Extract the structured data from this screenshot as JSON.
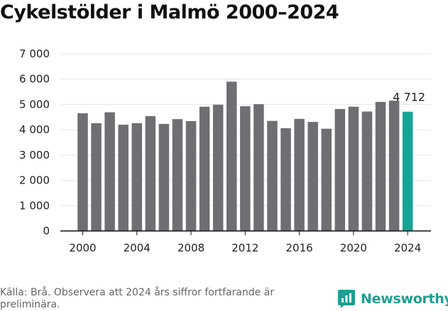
{
  "title": "Cykelstölder i Malmö 2000–2024",
  "source": "Källa: Brå. Observera att 2024 års siffror fortfarande är preliminära.",
  "brand": {
    "name": "Newsworthy",
    "color": "#1f9e91"
  },
  "colors": {
    "bar": "#6f6e73",
    "highlight": "#14a597",
    "grid": "#e6e6e6",
    "axis": "#111111"
  },
  "chart_data": {
    "type": "bar",
    "title": "Cykelstölder i Malmö 2000–2024",
    "xlabel": "",
    "ylabel": "",
    "categories": [
      "2000",
      "2001",
      "2002",
      "2003",
      "2004",
      "2005",
      "2006",
      "2007",
      "2008",
      "2009",
      "2010",
      "2011",
      "2012",
      "2013",
      "2014",
      "2015",
      "2016",
      "2017",
      "2018",
      "2019",
      "2020",
      "2021",
      "2022",
      "2023",
      "2024"
    ],
    "values": [
      4650,
      4260,
      4690,
      4200,
      4260,
      4540,
      4230,
      4420,
      4340,
      4910,
      4990,
      5900,
      4930,
      5010,
      4350,
      4060,
      4430,
      4310,
      4040,
      4820,
      4910,
      4720,
      5100,
      5150,
      4712
    ],
    "highlight": "2024",
    "annotation": {
      "category": "2024",
      "label": "4 712"
    },
    "ylim": [
      0,
      7000
    ],
    "yticks": [
      0,
      1000,
      2000,
      3000,
      4000,
      5000,
      6000,
      7000
    ],
    "ytick_labels": [
      "0",
      "1 000",
      "2 000",
      "3 000",
      "4 000",
      "5 000",
      "6 000",
      "7 000"
    ],
    "xticks": [
      "2000",
      "2004",
      "2008",
      "2012",
      "2016",
      "2020",
      "2024"
    ],
    "grid": true,
    "legend": "none"
  }
}
